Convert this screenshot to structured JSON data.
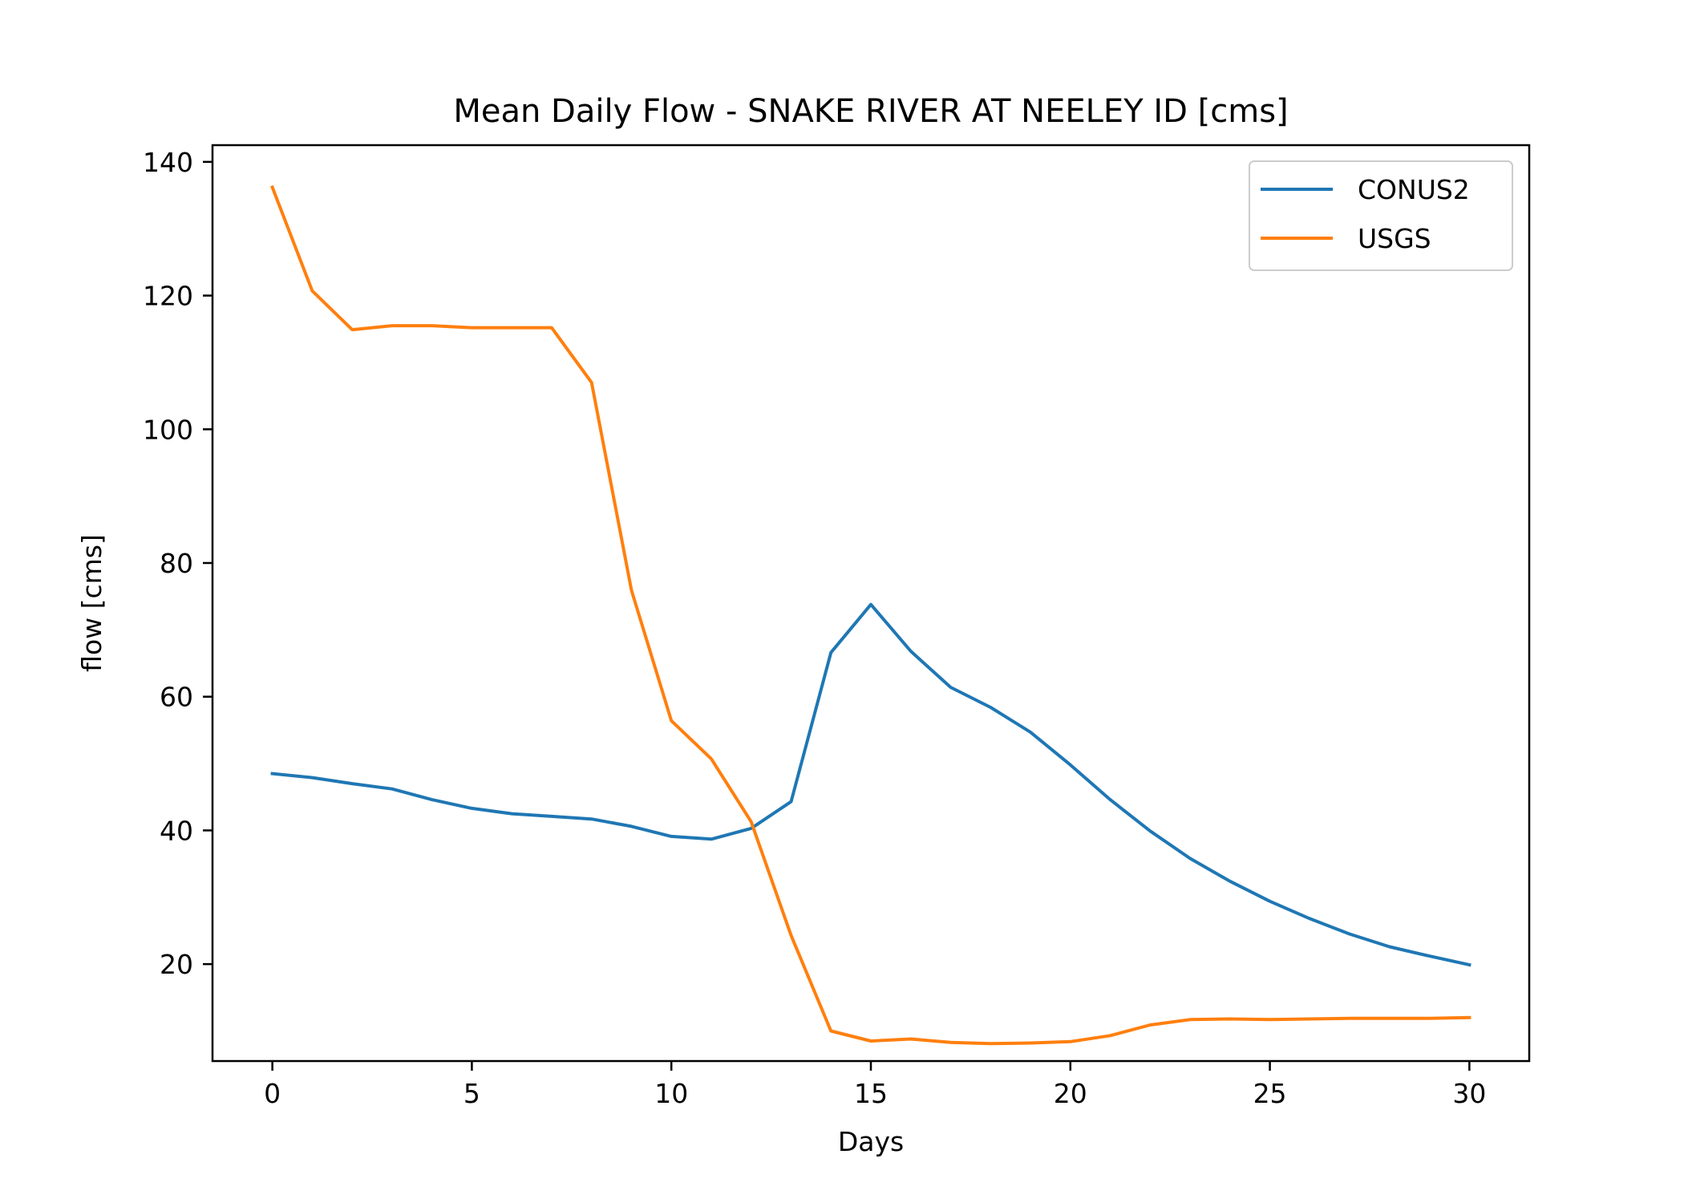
{
  "chart_data": {
    "type": "line",
    "title": "Mean Daily Flow - SNAKE RIVER AT NEELEY ID [cms]",
    "xlabel": "Days",
    "ylabel": "flow [cms]",
    "xlim": [
      -1.5,
      31.5
    ],
    "ylim": [
      5.5,
      142.5
    ],
    "xticks": [
      0,
      5,
      10,
      15,
      20,
      25,
      30
    ],
    "yticks": [
      20,
      40,
      60,
      80,
      100,
      120,
      140
    ],
    "grid": false,
    "legend_position": "upper right",
    "x": [
      0,
      1,
      2,
      3,
      4,
      5,
      6,
      7,
      8,
      9,
      10,
      11,
      12,
      13,
      14,
      15,
      16,
      17,
      18,
      19,
      20,
      21,
      22,
      23,
      24,
      25,
      26,
      27,
      28,
      29,
      30
    ],
    "series": [
      {
        "name": "CONUS2",
        "color": "#1f77b4",
        "values": [
          48.5,
          47.9,
          47.0,
          46.2,
          44.6,
          43.3,
          42.5,
          42.1,
          41.7,
          40.6,
          39.1,
          38.7,
          40.3,
          44.3,
          66.6,
          73.8,
          66.8,
          61.4,
          58.4,
          54.7,
          49.8,
          44.6,
          39.9,
          35.8,
          32.4,
          29.4,
          26.8,
          24.5,
          22.6,
          21.2,
          19.9
        ]
      },
      {
        "name": "USGS",
        "color": "#ff7f0e",
        "values": [
          136.2,
          120.7,
          114.9,
          115.5,
          115.5,
          115.2,
          115.2,
          115.2,
          107.0,
          75.9,
          56.4,
          50.7,
          41.3,
          24.3,
          10.0,
          8.5,
          8.8,
          8.3,
          8.1,
          8.2,
          8.4,
          9.3,
          10.9,
          11.7,
          11.8,
          11.7,
          11.8,
          11.9,
          11.9,
          11.9,
          12.0
        ]
      }
    ]
  }
}
